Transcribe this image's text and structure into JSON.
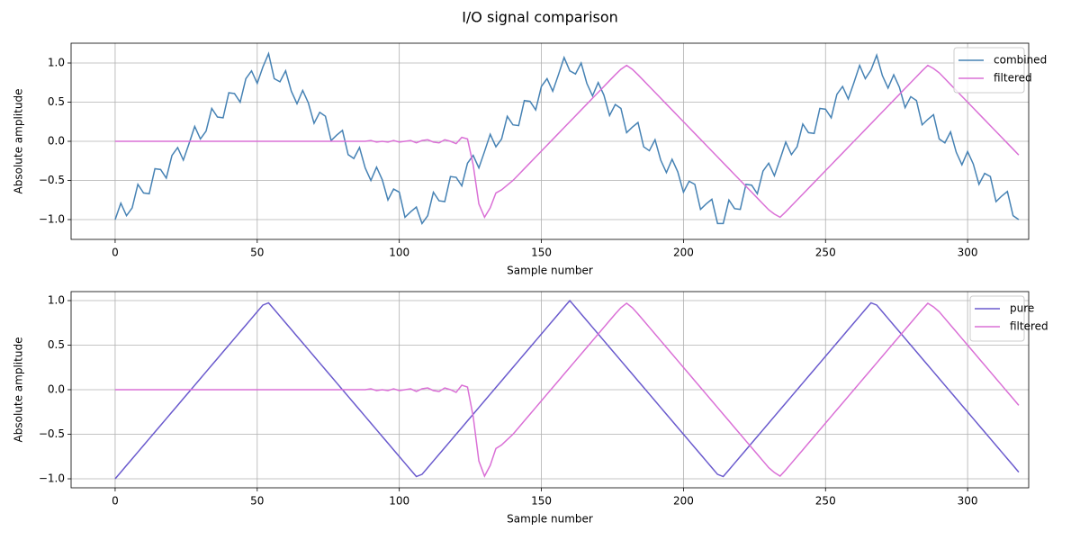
{
  "title": "I/O signal comparison",
  "chart_data": [
    {
      "type": "line",
      "xlabel": "Sample number",
      "ylabel": "Absolute amplitude",
      "grid": true,
      "legend": "upper right",
      "xlim": [
        -15.5,
        321.5
      ],
      "ylim": [
        -1.253,
        1.253
      ],
      "xticks": [
        0,
        50,
        100,
        150,
        200,
        250,
        300
      ],
      "yticks": [
        {
          "value": -1.0,
          "label": "−1.0"
        },
        {
          "value": -0.5,
          "label": "−0.5"
        },
        {
          "value": 0.0,
          "label": "0.0"
        },
        {
          "value": 0.5,
          "label": "0.5"
        },
        {
          "value": 1.0,
          "label": "1.0"
        }
      ],
      "x": [
        0,
        2,
        4,
        6,
        8,
        10,
        12,
        14,
        16,
        18,
        20,
        22,
        24,
        26,
        28,
        30,
        32,
        34,
        36,
        38,
        40,
        42,
        44,
        46,
        48,
        50,
        52,
        54,
        56,
        58,
        60,
        62,
        64,
        66,
        68,
        70,
        72,
        74,
        76,
        78,
        80,
        82,
        84,
        86,
        88,
        90,
        92,
        94,
        96,
        98,
        100,
        102,
        104,
        106,
        108,
        110,
        112,
        114,
        116,
        118,
        120,
        122,
        124,
        126,
        128,
        130,
        132,
        134,
        136,
        138,
        140,
        142,
        144,
        146,
        148,
        150,
        152,
        154,
        156,
        158,
        160,
        162,
        164,
        166,
        168,
        170,
        172,
        174,
        176,
        178,
        180,
        182,
        184,
        186,
        188,
        190,
        192,
        194,
        196,
        198,
        200,
        202,
        204,
        206,
        208,
        210,
        212,
        214,
        216,
        218,
        220,
        222,
        224,
        226,
        228,
        230,
        232,
        234,
        236,
        238,
        240,
        242,
        244,
        246,
        248,
        250,
        252,
        254,
        256,
        258,
        260,
        262,
        264,
        266,
        268,
        270,
        272,
        274,
        276,
        278,
        280,
        282,
        284,
        286,
        288,
        290,
        292,
        294,
        296,
        298,
        300,
        302,
        304,
        306,
        308,
        310,
        312,
        314,
        316,
        318
      ],
      "series": [
        {
          "name": "combined",
          "color": "#4682b4",
          "values": [
            -1.0,
            -0.79,
            -0.95,
            -0.85,
            -0.55,
            -0.66,
            -0.67,
            -0.35,
            -0.36,
            -0.47,
            -0.18,
            -0.08,
            -0.24,
            -0.03,
            0.19,
            0.03,
            0.13,
            0.42,
            0.31,
            0.3,
            0.62,
            0.61,
            0.5,
            0.8,
            0.9,
            0.74,
            0.95,
            1.12,
            0.8,
            0.76,
            0.9,
            0.64,
            0.48,
            0.65,
            0.49,
            0.23,
            0.37,
            0.32,
            0.01,
            0.08,
            0.14,
            -0.17,
            -0.22,
            -0.08,
            -0.34,
            -0.5,
            -0.33,
            -0.49,
            -0.75,
            -0.61,
            -0.65,
            -0.97,
            -0.9,
            -0.84,
            -1.05,
            -0.95,
            -0.65,
            -0.76,
            -0.77,
            -0.45,
            -0.46,
            -0.57,
            -0.28,
            -0.18,
            -0.34,
            -0.13,
            0.09,
            -0.07,
            0.03,
            0.32,
            0.21,
            0.2,
            0.52,
            0.51,
            0.4,
            0.7,
            0.8,
            0.64,
            0.85,
            1.07,
            0.9,
            0.86,
            1.0,
            0.74,
            0.58,
            0.75,
            0.59,
            0.33,
            0.47,
            0.42,
            0.11,
            0.18,
            0.24,
            -0.07,
            -0.12,
            0.02,
            -0.24,
            -0.4,
            -0.23,
            -0.39,
            -0.65,
            -0.51,
            -0.55,
            -0.87,
            -0.8,
            -0.74,
            -1.05,
            -1.05,
            -0.75,
            -0.86,
            -0.87,
            -0.55,
            -0.56,
            -0.67,
            -0.38,
            -0.28,
            -0.44,
            -0.23,
            -0.01,
            -0.17,
            -0.07,
            0.22,
            0.11,
            0.1,
            0.42,
            0.41,
            0.3,
            0.6,
            0.7,
            0.54,
            0.75,
            0.97,
            0.8,
            0.91,
            1.1,
            0.84,
            0.68,
            0.85,
            0.69,
            0.43,
            0.57,
            0.52,
            0.21,
            0.28,
            0.34,
            0.03,
            -0.02,
            0.12,
            -0.14,
            -0.3,
            -0.13,
            -0.29,
            -0.55,
            -0.41,
            -0.45,
            -0.77,
            -0.7,
            -0.64,
            -0.95,
            -1.0
          ]
        },
        {
          "name": "filtered",
          "color": "#da70d6",
          "values": [
            0,
            0,
            0,
            0,
            0,
            0,
            0,
            0,
            0,
            0,
            0,
            0,
            0,
            0,
            0,
            0,
            0,
            0,
            0,
            0,
            0,
            0,
            0,
            0,
            0,
            0,
            0,
            0,
            0,
            0,
            0,
            0,
            0,
            0,
            0,
            0,
            0,
            0,
            0,
            0,
            0,
            0,
            0,
            0,
            0,
            0.01,
            -0.01,
            0,
            -0.01,
            0.01,
            -0.01,
            0,
            0.01,
            -0.02,
            0.01,
            0.02,
            -0.01,
            -0.02,
            0.02,
            0,
            -0.03,
            0.05,
            0.03,
            -0.3,
            -0.8,
            -0.97,
            -0.85,
            -0.66,
            -0.62,
            -0.56,
            -0.5,
            -0.425,
            -0.35,
            -0.275,
            -0.2,
            -0.125,
            -0.05,
            0.025,
            0.1,
            0.175,
            0.25,
            0.325,
            0.4,
            0.475,
            0.55,
            0.625,
            0.7,
            0.775,
            0.85,
            0.92,
            0.97,
            0.92,
            0.85,
            0.775,
            0.7,
            0.625,
            0.55,
            0.475,
            0.4,
            0.325,
            0.25,
            0.175,
            0.1,
            0.025,
            -0.05,
            -0.125,
            -0.2,
            -0.275,
            -0.35,
            -0.425,
            -0.5,
            -0.575,
            -0.65,
            -0.725,
            -0.8,
            -0.875,
            -0.93,
            -0.97,
            -0.9,
            -0.825,
            -0.75,
            -0.675,
            -0.6,
            -0.525,
            -0.45,
            -0.375,
            -0.3,
            -0.225,
            -0.15,
            -0.075,
            0,
            0.075,
            0.15,
            0.225,
            0.3,
            0.375,
            0.45,
            0.525,
            0.6,
            0.675,
            0.75,
            0.825,
            0.9,
            0.97,
            0.93,
            0.875,
            0.8,
            0.725,
            0.65,
            0.575,
            0.5,
            0.425,
            0.35,
            0.275,
            0.2,
            0.125,
            0.05,
            -0.025,
            -0.1,
            -0.175
          ]
        }
      ]
    },
    {
      "type": "line",
      "xlabel": "Sample number",
      "ylabel": "Absolute amplitude",
      "grid": true,
      "legend": "upper right",
      "xlim": [
        -15.5,
        321.5
      ],
      "ylim": [
        -1.101,
        1.101
      ],
      "xticks": [
        0,
        50,
        100,
        150,
        200,
        250,
        300
      ],
      "yticks": [
        {
          "value": -1.0,
          "label": "−1.0"
        },
        {
          "value": -0.5,
          "label": "−0.5"
        },
        {
          "value": 0.0,
          "label": "0.0"
        },
        {
          "value": 0.5,
          "label": "0.5"
        },
        {
          "value": 1.0,
          "label": "1.0"
        }
      ],
      "x": [
        0,
        2,
        4,
        6,
        8,
        10,
        12,
        14,
        16,
        18,
        20,
        22,
        24,
        26,
        28,
        30,
        32,
        34,
        36,
        38,
        40,
        42,
        44,
        46,
        48,
        50,
        52,
        54,
        56,
        58,
        60,
        62,
        64,
        66,
        68,
        70,
        72,
        74,
        76,
        78,
        80,
        82,
        84,
        86,
        88,
        90,
        92,
        94,
        96,
        98,
        100,
        102,
        104,
        106,
        108,
        110,
        112,
        114,
        116,
        118,
        120,
        122,
        124,
        126,
        128,
        130,
        132,
        134,
        136,
        138,
        140,
        142,
        144,
        146,
        148,
        150,
        152,
        154,
        156,
        158,
        160,
        162,
        164,
        166,
        168,
        170,
        172,
        174,
        176,
        178,
        180,
        182,
        184,
        186,
        188,
        190,
        192,
        194,
        196,
        198,
        200,
        202,
        204,
        206,
        208,
        210,
        212,
        214,
        216,
        218,
        220,
        222,
        224,
        226,
        228,
        230,
        232,
        234,
        236,
        238,
        240,
        242,
        244,
        246,
        248,
        250,
        252,
        254,
        256,
        258,
        260,
        262,
        264,
        266,
        268,
        270,
        272,
        274,
        276,
        278,
        280,
        282,
        284,
        286,
        288,
        290,
        292,
        294,
        296,
        298,
        300,
        302,
        304,
        306,
        308,
        310,
        312,
        314,
        316,
        318
      ],
      "series": [
        {
          "name": "pure",
          "color": "#6a5acd",
          "values": [
            -1,
            -0.925,
            -0.85,
            -0.775,
            -0.7,
            -0.625,
            -0.55,
            -0.475,
            -0.4,
            -0.325,
            -0.25,
            -0.175,
            -0.1,
            -0.025,
            0.05,
            0.125,
            0.2,
            0.275,
            0.35,
            0.425,
            0.5,
            0.575,
            0.65,
            0.725,
            0.8,
            0.875,
            0.95,
            0.975,
            0.9,
            0.825,
            0.75,
            0.675,
            0.6,
            0.525,
            0.45,
            0.375,
            0.3,
            0.225,
            0.15,
            0.075,
            0,
            -0.075,
            -0.15,
            -0.225,
            -0.3,
            -0.375,
            -0.45,
            -0.525,
            -0.6,
            -0.675,
            -0.75,
            -0.825,
            -0.9,
            -0.975,
            -0.95,
            -0.875,
            -0.8,
            -0.725,
            -0.65,
            -0.575,
            -0.5,
            -0.425,
            -0.35,
            -0.275,
            -0.2,
            -0.125,
            -0.05,
            0.025,
            0.1,
            0.175,
            0.25,
            0.325,
            0.4,
            0.475,
            0.55,
            0.625,
            0.7,
            0.775,
            0.85,
            0.925,
            1,
            0.925,
            0.85,
            0.775,
            0.7,
            0.625,
            0.55,
            0.475,
            0.4,
            0.325,
            0.25,
            0.175,
            0.1,
            0.025,
            -0.05,
            -0.125,
            -0.2,
            -0.275,
            -0.35,
            -0.425,
            -0.5,
            -0.575,
            -0.65,
            -0.725,
            -0.8,
            -0.875,
            -0.95,
            -0.975,
            -0.9,
            -0.825,
            -0.75,
            -0.675,
            -0.6,
            -0.525,
            -0.45,
            -0.375,
            -0.3,
            -0.225,
            -0.15,
            -0.075,
            0,
            0.075,
            0.15,
            0.225,
            0.3,
            0.375,
            0.45,
            0.525,
            0.6,
            0.675,
            0.75,
            0.825,
            0.9,
            0.975,
            0.95,
            0.875,
            0.8,
            0.725,
            0.65,
            0.575,
            0.5,
            0.425,
            0.35,
            0.275,
            0.2,
            0.125,
            0.05,
            -0.025,
            -0.1,
            -0.175,
            -0.25,
            -0.325,
            -0.4,
            -0.475,
            -0.55,
            -0.625,
            -0.7,
            -0.775,
            -0.85,
            -0.925
          ]
        },
        {
          "name": "filtered",
          "color": "#da70d6",
          "values": [
            0,
            0,
            0,
            0,
            0,
            0,
            0,
            0,
            0,
            0,
            0,
            0,
            0,
            0,
            0,
            0,
            0,
            0,
            0,
            0,
            0,
            0,
            0,
            0,
            0,
            0,
            0,
            0,
            0,
            0,
            0,
            0,
            0,
            0,
            0,
            0,
            0,
            0,
            0,
            0,
            0,
            0,
            0,
            0,
            0,
            0.01,
            -0.01,
            0,
            -0.01,
            0.01,
            -0.01,
            0,
            0.01,
            -0.02,
            0.01,
            0.02,
            -0.01,
            -0.02,
            0.02,
            0,
            -0.03,
            0.05,
            0.03,
            -0.3,
            -0.8,
            -0.97,
            -0.85,
            -0.66,
            -0.62,
            -0.56,
            -0.5,
            -0.425,
            -0.35,
            -0.275,
            -0.2,
            -0.125,
            -0.05,
            0.025,
            0.1,
            0.175,
            0.25,
            0.325,
            0.4,
            0.475,
            0.55,
            0.625,
            0.7,
            0.775,
            0.85,
            0.92,
            0.97,
            0.92,
            0.85,
            0.775,
            0.7,
            0.625,
            0.55,
            0.475,
            0.4,
            0.325,
            0.25,
            0.175,
            0.1,
            0.025,
            -0.05,
            -0.125,
            -0.2,
            -0.275,
            -0.35,
            -0.425,
            -0.5,
            -0.575,
            -0.65,
            -0.725,
            -0.8,
            -0.875,
            -0.93,
            -0.97,
            -0.9,
            -0.825,
            -0.75,
            -0.675,
            -0.6,
            -0.525,
            -0.45,
            -0.375,
            -0.3,
            -0.225,
            -0.15,
            -0.075,
            0,
            0.075,
            0.15,
            0.225,
            0.3,
            0.375,
            0.45,
            0.525,
            0.6,
            0.675,
            0.75,
            0.825,
            0.9,
            0.97,
            0.93,
            0.875,
            0.8,
            0.725,
            0.65,
            0.575,
            0.5,
            0.425,
            0.35,
            0.275,
            0.2,
            0.125,
            0.05,
            -0.025,
            -0.1,
            -0.175
          ]
        }
      ]
    }
  ]
}
